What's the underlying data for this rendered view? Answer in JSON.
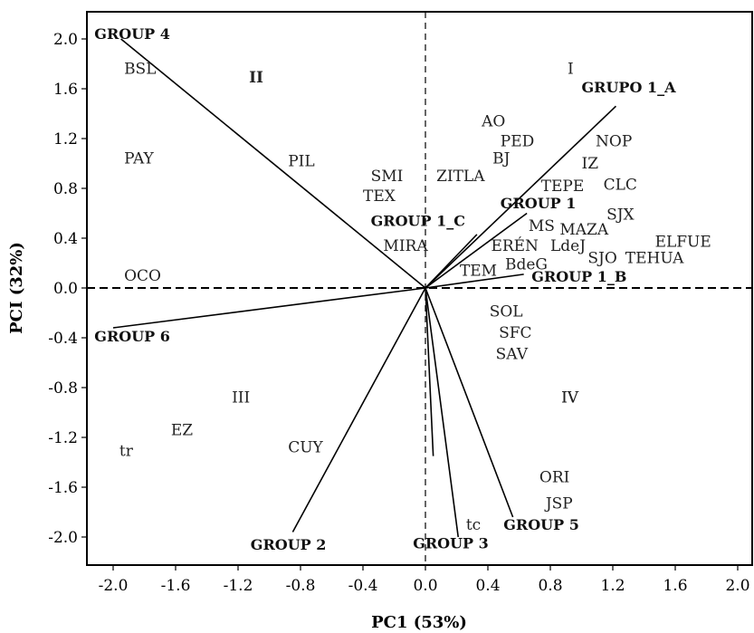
{
  "chart_data": {
    "type": "scatter",
    "xlabel": "PC1 (53%)",
    "ylabel": "PCI (32%)",
    "xlim": [
      -2.15,
      2.15
    ],
    "ylim": [
      -2.25,
      2.2
    ],
    "x_ticks": [
      -2.0,
      -1.6,
      -1.2,
      -0.8,
      -0.4,
      0.0,
      0.4,
      0.8,
      1.2,
      1.6,
      2.0
    ],
    "y_ticks": [
      2.0,
      1.6,
      1.2,
      0.8,
      0.4,
      0.0,
      -0.4,
      -0.8,
      -1.2,
      -1.6,
      -2.0
    ],
    "tick_labels_x": [
      "-2.0",
      "-1.6",
      "-1.2",
      "-0.8",
      "-0.4",
      "0.0",
      "0.4",
      "0.8",
      "1.2",
      "1.6",
      "2.0"
    ],
    "tick_labels_y": [
      "2.0",
      "1.6",
      "1.2",
      "0.8",
      "0.4",
      "0.0",
      "-0.4",
      "-0.8",
      "-1.2",
      "-1.6",
      "-2.0"
    ],
    "grid": false,
    "reference_lines": {
      "x0": "dashed",
      "y0": "dashed"
    },
    "vectors": [
      {
        "name": "GROUP 4",
        "x": -1.95,
        "y": 2.0,
        "label_x": -2.12,
        "label_y": 2.0
      },
      {
        "name": "GRUPO 1_A",
        "x": 1.22,
        "y": 1.46,
        "label_x": 1.0,
        "label_y": 1.57
      },
      {
        "name": "GROUP 1",
        "x": 0.65,
        "y": 0.6,
        "label_x": 0.48,
        "label_y": 0.64
      },
      {
        "name": "GROUP 1_C",
        "x": 0.33,
        "y": 0.43,
        "label_x": -0.35,
        "label_y": 0.5
      },
      {
        "name": "GROUP 1_B",
        "x": 0.63,
        "y": 0.11,
        "label_x": 0.68,
        "label_y": 0.05
      },
      {
        "name": "GROUP 6",
        "x": -2.0,
        "y": -0.32,
        "label_x": -2.12,
        "label_y": -0.43
      },
      {
        "name": "GROUP 2",
        "x": -0.85,
        "y": -1.96,
        "label_x": -1.12,
        "label_y": -2.1
      },
      {
        "name": "GROUP 3",
        "x": 0.21,
        "y": -2.0,
        "label_x": -0.08,
        "label_y": -2.09
      },
      {
        "name": "GROUP 5",
        "x": 0.56,
        "y": -1.84,
        "label_x": 0.5,
        "label_y": -1.94
      },
      {
        "name": "",
        "x": 0.05,
        "y": -1.35,
        "label_x": 0.05,
        "label_y": -1.35
      }
    ],
    "points": [
      {
        "label": "BSL",
        "x": -1.93,
        "y": 1.72
      },
      {
        "label": "PAY",
        "x": -1.93,
        "y": 1.0
      },
      {
        "label": "PIL",
        "x": -0.88,
        "y": 0.98
      },
      {
        "label": "SMI",
        "x": -0.35,
        "y": 0.86
      },
      {
        "label": "TEX",
        "x": -0.4,
        "y": 0.7
      },
      {
        "label": "MIRA",
        "x": -0.27,
        "y": 0.3
      },
      {
        "label": "OCO",
        "x": -1.93,
        "y": 0.06
      },
      {
        "label": "AO",
        "x": 0.36,
        "y": 1.3
      },
      {
        "label": "PED",
        "x": 0.48,
        "y": 1.14
      },
      {
        "label": "BJ",
        "x": 0.43,
        "y": 1.0
      },
      {
        "label": "ZITLA",
        "x": 0.07,
        "y": 0.86
      },
      {
        "label": "NOP",
        "x": 1.09,
        "y": 1.14
      },
      {
        "label": "IZ",
        "x": 1.0,
        "y": 0.96
      },
      {
        "label": "TEPE",
        "x": 0.74,
        "y": 0.78
      },
      {
        "label": "CLC",
        "x": 1.14,
        "y": 0.79
      },
      {
        "label": "SJX",
        "x": 1.16,
        "y": 0.55
      },
      {
        "label": "MS",
        "x": 0.66,
        "y": 0.46
      },
      {
        "label": "MAZA",
        "x": 0.86,
        "y": 0.43
      },
      {
        "label": "ERÉN",
        "x": 0.42,
        "y": 0.3
      },
      {
        "label": "LdeJ",
        "x": 0.8,
        "y": 0.3
      },
      {
        "label": "ELFUE",
        "x": 1.47,
        "y": 0.33
      },
      {
        "label": "SJO",
        "x": 1.04,
        "y": 0.2
      },
      {
        "label": "TEHUA",
        "x": 1.28,
        "y": 0.2
      },
      {
        "label": "BdeG",
        "x": 0.51,
        "y": 0.15
      },
      {
        "label": "TEM",
        "x": 0.22,
        "y": 0.1
      },
      {
        "label": "SOL",
        "x": 0.41,
        "y": -0.23
      },
      {
        "label": "SFC",
        "x": 0.47,
        "y": -0.4
      },
      {
        "label": "SAV",
        "x": 0.45,
        "y": -0.57
      },
      {
        "label": "IV",
        "x": 0.87,
        "y": -0.92
      },
      {
        "label": "EZ",
        "x": -1.63,
        "y": -1.18
      },
      {
        "label": "tr",
        "x": -1.96,
        "y": -1.35
      },
      {
        "label": "CUY",
        "x": -0.88,
        "y": -1.32
      },
      {
        "label": "ORI",
        "x": 0.73,
        "y": -1.56
      },
      {
        "label": "JSP",
        "x": 0.77,
        "y": -1.77
      },
      {
        "label": "tc",
        "x": 0.26,
        "y": -1.94
      }
    ],
    "quadrant_labels": [
      {
        "label": "I",
        "x": 0.91,
        "y": 1.72,
        "bold": false
      },
      {
        "label": "II",
        "x": -1.13,
        "y": 1.65,
        "bold": true
      },
      {
        "label": "III",
        "x": -1.24,
        "y": -0.92,
        "bold": false
      },
      {
        "label": "IV",
        "x": 0.87,
        "y": -0.92,
        "bold": false
      }
    ]
  }
}
